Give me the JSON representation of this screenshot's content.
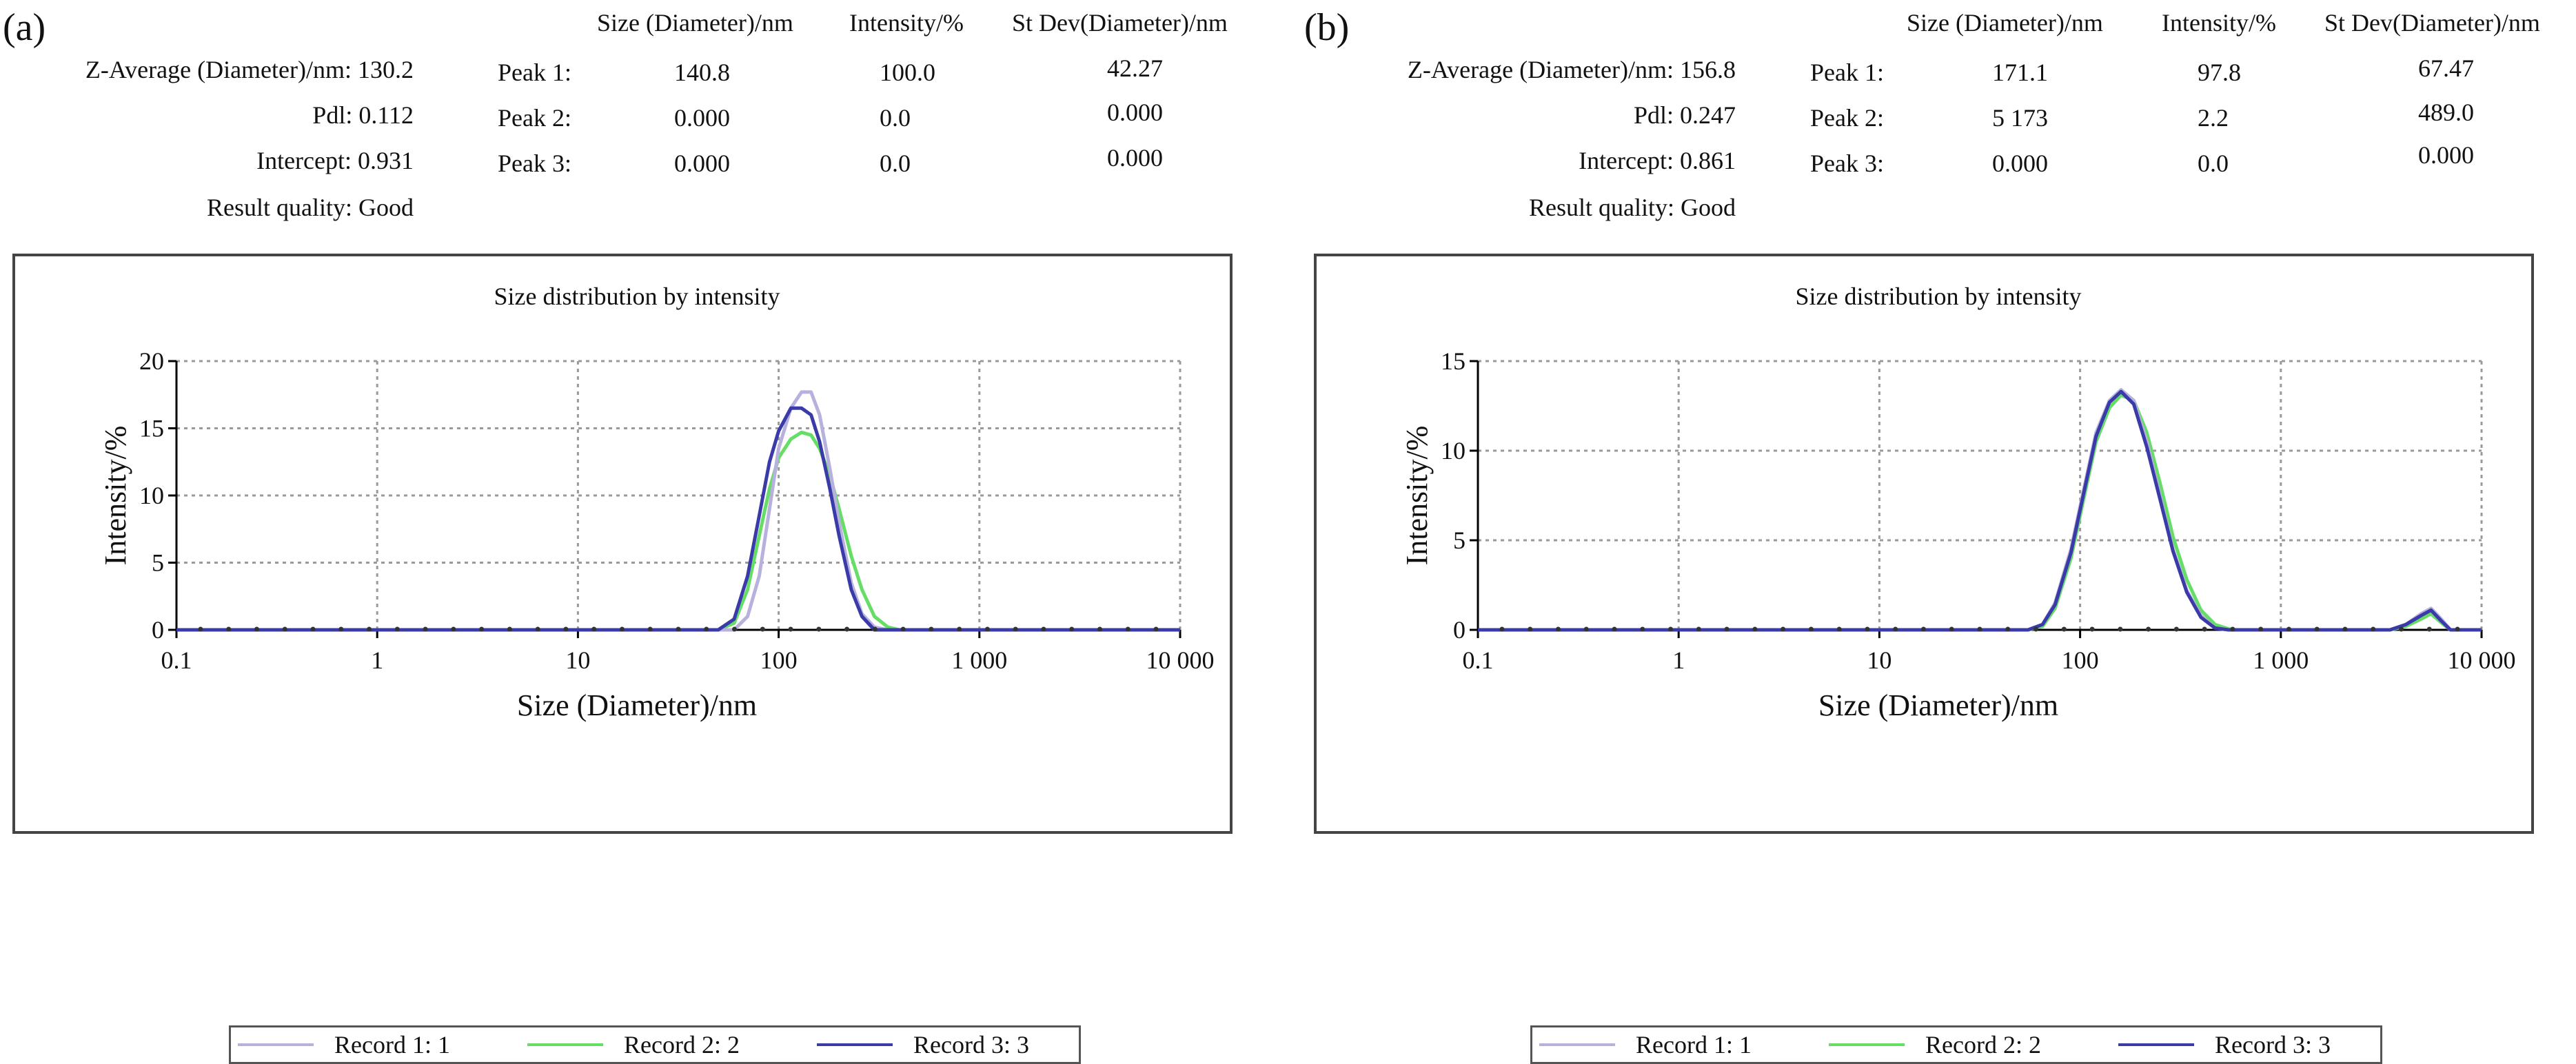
{
  "panels": [
    {
      "label": "(a)",
      "stats": [
        {
          "label": "Z-Average (Diameter)/nm:",
          "value": "130.2"
        },
        {
          "label": "Pdl:",
          "value": "0.112"
        },
        {
          "label": "Intercept:",
          "value": "0.931"
        },
        {
          "label": "Result quality:",
          "value": "Good"
        }
      ],
      "table": {
        "headers": [
          "Size (Diameter)/nm",
          "Intensity/%",
          "St Dev(Diameter)/nm"
        ],
        "rows": [
          {
            "peak": "Peak 1:",
            "size": "140.8",
            "intensity": "100.0",
            "stdev": "42.27"
          },
          {
            "peak": "Peak 2:",
            "size": "0.000",
            "intensity": "0.0",
            "stdev": "0.000"
          },
          {
            "peak": "Peak 3:",
            "size": "0.000",
            "intensity": "0.0",
            "stdev": "0.000"
          }
        ]
      }
    },
    {
      "label": "(b)",
      "stats": [
        {
          "label": "Z-Average (Diameter)/nm:",
          "value": "156.8"
        },
        {
          "label": "Pdl:",
          "value": "0.247"
        },
        {
          "label": "Intercept:",
          "value": "0.861"
        },
        {
          "label": "Result quality:",
          "value": "Good"
        }
      ],
      "table": {
        "headers": [
          "Size (Diameter)/nm",
          "Intensity/%",
          "St Dev(Diameter)/nm"
        ],
        "rows": [
          {
            "peak": "Peak 1:",
            "size": "171.1",
            "intensity": "97.8",
            "stdev": "67.47"
          },
          {
            "peak": "Peak 2:",
            "size": "5 173",
            "intensity": "2.2",
            "stdev": "489.0"
          },
          {
            "peak": "Peak 3:",
            "size": "0.000",
            "intensity": "0.0",
            "stdev": "0.000"
          }
        ]
      }
    }
  ],
  "colors": {
    "record1": "#b7b2dd",
    "record2": "#66dd66",
    "record3": "#3a3aa8",
    "grid": "#9a9a9a",
    "axis": "#000000"
  },
  "chart_data": [
    {
      "type": "line",
      "title": "Size distribution by intensity",
      "xlabel": "Size (Diameter)/nm",
      "ylabel": "Intensity/%",
      "xscale": "log",
      "xlim": [
        0.1,
        10000
      ],
      "ylim": [
        0,
        20
      ],
      "xticks": [
        0.1,
        1,
        10,
        100,
        1000,
        10000
      ],
      "xtick_labels": [
        "0.1",
        "1",
        "10",
        "100",
        "1 000",
        "10 000"
      ],
      "yticks": [
        0,
        5,
        10,
        15,
        20
      ],
      "ytick_labels": [
        "0",
        "5",
        "10",
        "15",
        "20"
      ],
      "grid": true,
      "legend": "bottom",
      "series": [
        {
          "name": "Record 1: 1",
          "color": "#b7b2dd",
          "x": [
            0.1,
            50,
            60,
            70,
            80,
            90,
            100,
            115,
            130,
            145,
            160,
            180,
            200,
            230,
            260,
            300,
            350,
            10000
          ],
          "y": [
            0,
            0,
            0,
            1.0,
            4.0,
            9.0,
            13.5,
            16.5,
            17.7,
            17.7,
            16.0,
            12.0,
            8.0,
            3.5,
            1.2,
            0.2,
            0,
            0
          ]
        },
        {
          "name": "Record 2: 2",
          "color": "#66dd66",
          "x": [
            0.1,
            50,
            60,
            70,
            80,
            90,
            100,
            115,
            130,
            145,
            160,
            180,
            200,
            230,
            260,
            300,
            350,
            400,
            10000
          ],
          "y": [
            0,
            0,
            0.5,
            3.0,
            7.0,
            10.5,
            12.8,
            14.2,
            14.7,
            14.5,
            13.5,
            11.5,
            9.0,
            5.5,
            3.0,
            1.0,
            0.2,
            0,
            0
          ]
        },
        {
          "name": "Record 3: 3",
          "color": "#3a3aa8",
          "x": [
            0.1,
            50,
            60,
            70,
            80,
            90,
            100,
            115,
            130,
            145,
            160,
            180,
            200,
            230,
            260,
            300,
            10000
          ],
          "y": [
            0,
            0,
            0.8,
            4.0,
            8.5,
            12.5,
            14.8,
            16.5,
            16.5,
            16.0,
            14.0,
            10.5,
            7.0,
            3.0,
            1.0,
            0,
            0
          ]
        }
      ]
    },
    {
      "type": "line",
      "title": "Size distribution by intensity",
      "xlabel": "Size (Diameter)/nm",
      "ylabel": "Intensity/%",
      "xscale": "log",
      "xlim": [
        0.1,
        10000
      ],
      "ylim": [
        0,
        15
      ],
      "xticks": [
        0.1,
        1,
        10,
        100,
        1000,
        10000
      ],
      "xtick_labels": [
        "0.1",
        "1",
        "10",
        "100",
        "1 000",
        "10 000"
      ],
      "yticks": [
        0,
        5,
        10,
        15
      ],
      "ytick_labels": [
        "0",
        "5",
        "10",
        "15"
      ],
      "grid": true,
      "legend": "bottom",
      "series": [
        {
          "name": "Record 1: 1",
          "color": "#b7b2dd",
          "x": [
            0.1,
            55,
            65,
            75,
            90,
            105,
            120,
            140,
            160,
            185,
            215,
            250,
            290,
            340,
            400,
            470,
            550,
            3500,
            4200,
            5000,
            5600,
            6300,
            7000,
            10000
          ],
          "y": [
            0,
            0,
            0.3,
            1.5,
            4.5,
            8.0,
            11.0,
            12.8,
            13.4,
            12.8,
            10.5,
            7.5,
            4.5,
            2.2,
            0.8,
            0.1,
            0,
            0,
            0.3,
            0.9,
            1.2,
            0.6,
            0,
            0
          ]
        },
        {
          "name": "Record 2: 2",
          "color": "#66dd66",
          "x": [
            0.1,
            55,
            65,
            75,
            90,
            105,
            120,
            140,
            160,
            185,
            215,
            250,
            290,
            340,
            400,
            470,
            550,
            600,
            3500,
            4200,
            5000,
            5600,
            6300,
            7000,
            10000
          ],
          "y": [
            0,
            0,
            0.2,
            1.2,
            4.0,
            7.5,
            10.5,
            12.4,
            13.1,
            12.8,
            11.0,
            8.2,
            5.2,
            2.8,
            1.1,
            0.3,
            0.05,
            0,
            0,
            0.2,
            0.6,
            0.9,
            0.4,
            0,
            0
          ]
        },
        {
          "name": "Record 3: 3",
          "color": "#3a3aa8",
          "x": [
            0.1,
            55,
            65,
            75,
            90,
            105,
            120,
            140,
            160,
            185,
            215,
            250,
            290,
            340,
            400,
            470,
            550,
            3500,
            4200,
            5000,
            5600,
            6300,
            7000,
            10000
          ],
          "y": [
            0,
            0,
            0.3,
            1.4,
            4.3,
            7.8,
            10.8,
            12.7,
            13.3,
            12.6,
            10.2,
            7.3,
            4.4,
            2.1,
            0.7,
            0.1,
            0,
            0,
            0.3,
            0.8,
            1.1,
            0.5,
            0,
            0
          ]
        }
      ]
    }
  ]
}
